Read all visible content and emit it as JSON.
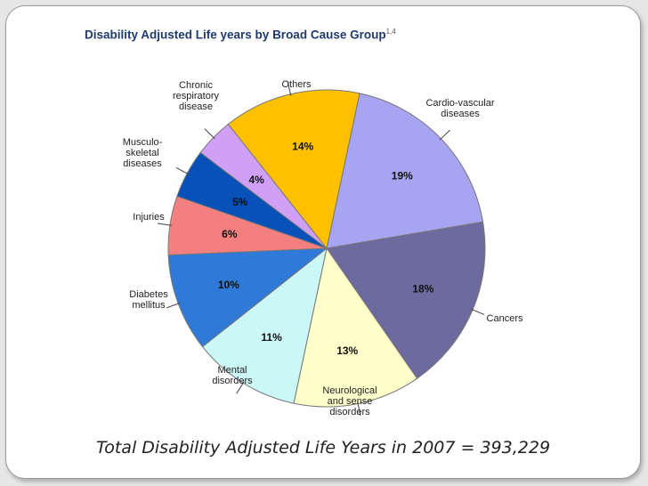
{
  "chart_data": {
    "type": "pie",
    "title": "Disability Adjusted Life years by Broad Cause Group",
    "title_superscript": "1,4",
    "slices": [
      {
        "label": "Cardio-vascular diseases",
        "label_lines": [
          "Cardio-vascular",
          "diseases"
        ],
        "value": 19,
        "value_label": "19%",
        "color": "#a7a5f2"
      },
      {
        "label": "Cancers",
        "label_lines": [
          "Cancers"
        ],
        "value": 18,
        "value_label": "18%",
        "color": "#6d6a9f"
      },
      {
        "label": "Neurological and sense disorders",
        "label_lines": [
          "Neurological",
          "and sense",
          "disorders"
        ],
        "value": 13,
        "value_label": "13%",
        "color": "#ffffcb"
      },
      {
        "label": "Mental disorders",
        "label_lines": [
          "Mental",
          "disorders"
        ],
        "value": 11,
        "value_label": "11%",
        "color": "#ccf7f7"
      },
      {
        "label": "Diabetes mellitus",
        "label_lines": [
          "Diabetes",
          "mellitus"
        ],
        "value": 10,
        "value_label": "10%",
        "color": "#2f7ad8"
      },
      {
        "label": "Injuries",
        "label_lines": [
          "Injuries"
        ],
        "value": 6,
        "value_label": "6%",
        "color": "#f37f7f"
      },
      {
        "label": "Musculo-skeletal diseases",
        "label_lines": [
          "Musculo-",
          "skeletal",
          "diseases"
        ],
        "value": 5,
        "value_label": "5%",
        "color": "#0751b8"
      },
      {
        "label": "Chronic respiratory disease",
        "label_lines": [
          "Chronic",
          "respiratory",
          "disease"
        ],
        "value": 4,
        "value_label": "4%",
        "color": "#cfa0f5"
      },
      {
        "label": "Others",
        "label_lines": [
          "Others"
        ],
        "value": 14,
        "value_label": "14%",
        "color": "#ffc000"
      }
    ]
  },
  "footer_text": "Total Disability Adjusted Life Years in 2007 = 393,229",
  "colors": {
    "title": "#1f3b6e",
    "slice_border": "#777777"
  }
}
